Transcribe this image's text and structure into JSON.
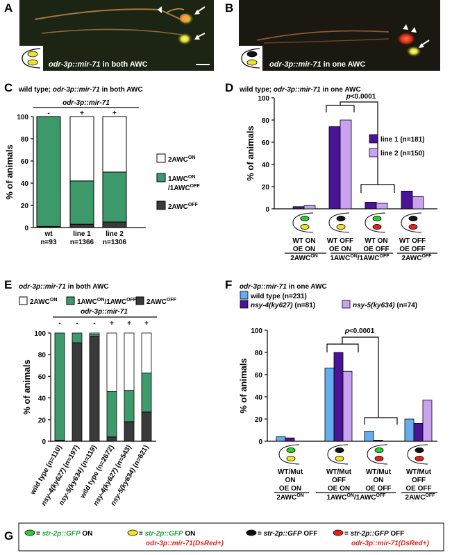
{
  "panel_letters": [
    "A",
    "B",
    "C",
    "D",
    "E",
    "F",
    "G"
  ],
  "micro": {
    "A_caption_gene": "odr-3p::mir-71",
    "A_caption_rest": " in both AWC",
    "B_caption_gene": "odr-3p::mir-71",
    "B_caption_rest": " in one AWC"
  },
  "colors": {
    "green": "#3d9a6b",
    "dark": "#3a3a3a",
    "white": "#ffffff",
    "purple_dark": "#4b1496",
    "purple_light": "#c9a2f0",
    "blue": "#64aef0",
    "red": "#e0231b",
    "yellow": "#f0e224",
    "cell_green": "#2fcc2f"
  },
  "chart_data": [
    {
      "id": "C",
      "type": "bar",
      "stacked": true,
      "title": "wild type; odr-3p::mir-71 in both AWC",
      "header": "odr-3p::mir-71",
      "signs": [
        "-",
        "+",
        "+"
      ],
      "categories": [
        "wt",
        "line 1",
        "line 2"
      ],
      "sample_sizes": [
        "n=93",
        "n=1366",
        "n=1306"
      ],
      "ylabel": "% of animals",
      "ylim": [
        0,
        100
      ],
      "yticks": [
        0,
        20,
        40,
        60,
        80,
        100
      ],
      "series": [
        {
          "name": "2AWC",
          "sup": "OFF",
          "color": "#3a3a3a",
          "values": [
            1,
            3,
            5
          ]
        },
        {
          "name": "1AWC",
          "sup": "ON",
          "line2": "1AWC",
          "sup2": "OFF",
          "color": "#3d9a6b",
          "values": [
            99,
            39,
            45
          ]
        },
        {
          "name": "2AWC",
          "sup": "ON",
          "color": "#ffffff",
          "values": [
            0,
            58,
            50
          ]
        }
      ],
      "legend_order": [
        2,
        1,
        0
      ]
    },
    {
      "id": "D",
      "type": "bar",
      "title": "wild type; odr-3p::mir-71 in one AWC",
      "ylabel": "% of animals",
      "ylim": [
        0,
        100
      ],
      "yticks": [
        0,
        20,
        40,
        60,
        80,
        100
      ],
      "annotation": "p<0.0001",
      "groups": [
        {
          "line1": "WT ON",
          "line2": "OE ON",
          "class": "2AWC",
          "sup": "ON",
          "cells": [
            "green",
            "yellow"
          ]
        },
        {
          "line1": "WT OFF",
          "line2": "OE ON",
          "class": "1AWC",
          "sup": "ON",
          "cls2": "/1AWC",
          "sup2": "OFF",
          "cells": [
            "black",
            "yellow"
          ]
        },
        {
          "line1": "WT ON",
          "line2": "OE OFF",
          "cells": [
            "green",
            "red"
          ]
        },
        {
          "line1": "WT OFF",
          "line2": "OE OFF",
          "class": "2AWC",
          "sup": "OFF",
          "cells": [
            "black",
            "red"
          ]
        }
      ],
      "series": [
        {
          "name": "line 1 (n=181)",
          "color": "#4b1496",
          "values": [
            2,
            74,
            6,
            16
          ]
        },
        {
          "name": "line 2 (n=150)",
          "color": "#c9a2f0",
          "values": [
            3,
            80,
            5,
            11
          ]
        }
      ]
    },
    {
      "id": "E",
      "type": "bar",
      "stacked": true,
      "title": "odr-3p::mir-71 in both AWC",
      "header": "odr-3p::mir-71",
      "signs": [
        "-",
        "-",
        "-",
        "+",
        "+",
        "+"
      ],
      "categories": [
        "wild type (n=110)",
        "nsy-4(ky627) (n=197)",
        "nsy-5(ky634) (n=119)",
        "wild type (n=2672)",
        "nsy-4(ky627) (n=543)",
        "nsy-5(ky634) (n=621)"
      ],
      "italic_prefix": [
        0,
        12,
        12,
        0,
        12,
        12
      ],
      "ylabel": "% of animals",
      "ylim": [
        0,
        100
      ],
      "yticks": [
        0,
        20,
        40,
        60,
        80,
        100
      ],
      "series": [
        {
          "name": "2AWC",
          "sup": "OFF",
          "color": "#3a3a3a",
          "values": [
            1,
            91,
            97,
            4,
            18,
            27
          ]
        },
        {
          "name": "1AWC",
          "sup": "ON",
          "line2": "/1AWC",
          "sup2": "OFF",
          "color": "#3d9a6b",
          "values": [
            99,
            9,
            2,
            42,
            29,
            36
          ]
        },
        {
          "name": "2AWC",
          "sup": "ON",
          "color": "#ffffff",
          "values": [
            0,
            0,
            1,
            54,
            53,
            37
          ]
        }
      ],
      "legend_order": [
        2,
        1,
        0
      ]
    },
    {
      "id": "F",
      "type": "bar",
      "title": "odr-3p::mir-71 in one AWC",
      "ylabel": "% of animals",
      "ylim": [
        0,
        100
      ],
      "yticks": [
        0,
        20,
        40,
        60,
        80,
        100
      ],
      "annotation": "p<0.0001",
      "groups": [
        {
          "line1": "WT/Mut",
          "line2": "ON",
          "line3": "OE ON",
          "class": "2AWC",
          "sup": "ON",
          "cells": [
            "green",
            "yellow"
          ]
        },
        {
          "line1": "WT/Mut",
          "line2": "OFF",
          "line3": "OE ON",
          "class": "1AWC",
          "sup": "ON",
          "cls2": "/1AWC",
          "sup2": "OFF",
          "cells": [
            "black",
            "yellow"
          ]
        },
        {
          "line1": "WT/Mut",
          "line2": "ON",
          "line3": "OE OFF",
          "cells": [
            "green",
            "red"
          ]
        },
        {
          "line1": "WT/Mut",
          "line2": "OFF",
          "line3": "OE OFF",
          "class": "2AWC",
          "sup": "OFF",
          "cells": [
            "black",
            "red"
          ]
        }
      ],
      "series": [
        {
          "name": "wild type (n=231)",
          "color": "#64aef0",
          "values": [
            4,
            66,
            9,
            20
          ]
        },
        {
          "name": "nsy-4(ky627) (n=81)",
          "color": "#4b1496",
          "values": [
            3,
            80,
            1,
            16
          ]
        },
        {
          "name": "nsy-5(ky634) (n=74)",
          "color": "#c9a2f0",
          "values": [
            0,
            63,
            0,
            37
          ]
        }
      ]
    }
  ],
  "legendG": [
    {
      "gene": "str-2p::GFP",
      "state": " ON",
      "extra": "",
      "cell": "green"
    },
    {
      "gene": "str-2p::GFP",
      "state": " ON",
      "extra": "odr-3p::mir-71(DsRed+)",
      "cell": "yellow"
    },
    {
      "gene": "str-2p::GFP",
      "state": " OFF",
      "extra": "",
      "cell": "black"
    },
    {
      "gene": "str-2p::GFP",
      "state": " OFF",
      "extra": "odr-3p::mir-71(DsRed+)",
      "cell": "red"
    }
  ],
  "eq": "= "
}
